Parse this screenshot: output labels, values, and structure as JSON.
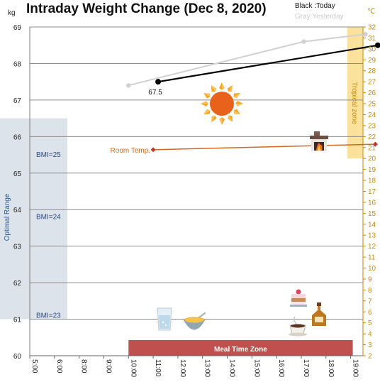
{
  "chart_data": {
    "type": "line",
    "title": "Intraday Weight Change (Dec 8, 2020)",
    "left_unit": "kg",
    "right_unit": "℃",
    "legend": {
      "today": "Black :Today",
      "yesterday": "Gray:Yesterday"
    },
    "ylim": [
      60,
      69
    ],
    "y_ticks": [
      "60",
      "61",
      "62",
      "63",
      "64",
      "65",
      "66",
      "67",
      "68",
      "69"
    ],
    "y2lim": [
      2,
      32
    ],
    "y2_ticks": [
      "2",
      "3",
      "4",
      "5",
      "6",
      "7",
      "8",
      "9",
      "10",
      "11",
      "12",
      "13",
      "14",
      "15",
      "16",
      "17",
      "18",
      "19",
      "20",
      "21",
      "22",
      "23",
      "24",
      "25",
      "26",
      "27",
      "28",
      "29",
      "30",
      "31",
      "32"
    ],
    "x_ticks": [
      "5:00",
      "6:00",
      "8:00",
      "9:00",
      "10:00",
      "11:00",
      "12:00",
      "13:00",
      "14:00",
      "15:00",
      "16:00",
      "17:00",
      "18:00",
      "19:00"
    ],
    "series": [
      {
        "name": "Today",
        "color": "#000000",
        "x_index": [
          5.2,
          14.1
        ],
        "values": [
          67.5,
          68.5
        ],
        "labels": [
          "67.5",
          "68.5"
        ]
      },
      {
        "name": "Yesterday",
        "color": "#d0d0d0",
        "x_index": [
          4.0,
          11.1,
          13.6
        ],
        "values": [
          67.4,
          68.6,
          68.8
        ]
      }
    ],
    "room_temp": {
      "label": "Room Temp.",
      "color": "#d2691e",
      "x_index": [
        5.0,
        14.0
      ],
      "values": [
        20.8,
        21.3
      ]
    },
    "zones": {
      "optimal": {
        "label": "Optimal Range",
        "ylim": [
          61,
          66.5
        ],
        "color": "#dde3ea"
      },
      "tropical": {
        "label": "Tropical zone",
        "y2lim": [
          20,
          32
        ],
        "color": "#fbe29c"
      },
      "meal": {
        "label": "Meal Time Zone",
        "x_index": [
          4.0,
          13.0
        ],
        "color": "#c0504d"
      }
    },
    "bmi_lines": [
      {
        "label": "BMI=25",
        "value": 65.5
      },
      {
        "label": "BMI=24",
        "value": 63.8
      },
      {
        "label": "BMI=23",
        "value": 61.1
      }
    ],
    "icons": [
      "sun-icon",
      "fireplace-icon",
      "water-glass-icon",
      "soup-bowl-icon",
      "cake-icon",
      "whisky-bottle-icon",
      "coffee-cup-icon"
    ]
  }
}
